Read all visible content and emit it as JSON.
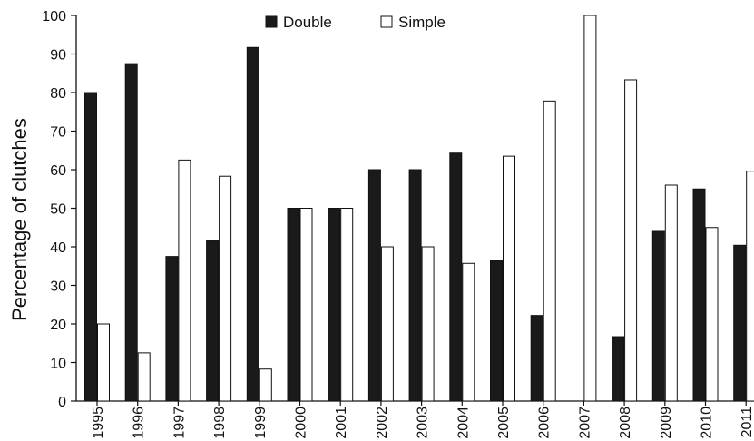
{
  "chart_data": {
    "type": "bar",
    "title": "",
    "xlabel": "",
    "ylabel": "Percentage of clutches",
    "ylim": [
      0,
      100
    ],
    "yticks": [
      0,
      10,
      20,
      30,
      40,
      50,
      60,
      70,
      80,
      90,
      100
    ],
    "categories": [
      "1995",
      "1996",
      "1997",
      "1998",
      "1999",
      "2000",
      "2001",
      "2002",
      "2003",
      "2004",
      "2005",
      "2006",
      "2007",
      "2008",
      "2009",
      "2010",
      "2011"
    ],
    "series": [
      {
        "name": "Double",
        "color": "#1a1a1a",
        "values": [
          80,
          87.5,
          37.5,
          41.7,
          91.7,
          50,
          50,
          60,
          60,
          64.3,
          36.5,
          22.2,
          0,
          16.7,
          44,
          55,
          40.4
        ]
      },
      {
        "name": "Simple",
        "color": "#ffffff",
        "values": [
          20,
          12.5,
          62.5,
          58.3,
          8.3,
          50,
          50,
          40,
          40,
          35.7,
          63.5,
          77.8,
          100,
          83.3,
          56,
          45,
          59.6
        ]
      }
    ],
    "legend_position": "top-center",
    "grid": false
  }
}
